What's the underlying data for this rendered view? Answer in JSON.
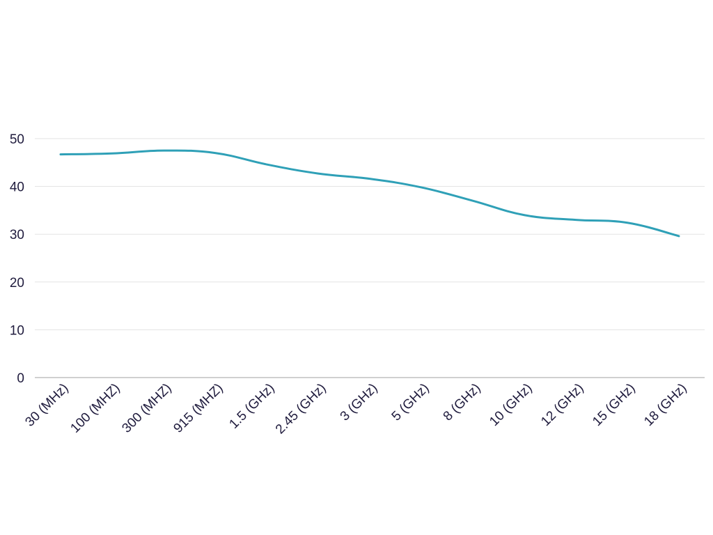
{
  "chart_data": {
    "type": "line",
    "categories": [
      "30 (MHz)",
      "100 (MHZ)",
      "300 (MHZ)",
      "915 (MHZ)",
      "1.5 (GHz)",
      "2.45 (GHz)",
      "3 (GHz)",
      "5 (GHz)",
      "8 (GHz)",
      "10 (GHz)",
      "12 (GHz)",
      "15 (GHz)",
      "18 (GHz)"
    ],
    "series": [
      {
        "values": [
          46.7,
          46.9,
          47.5,
          47.0,
          44.6,
          42.7,
          41.6,
          39.8,
          37.0,
          34.0,
          33.0,
          32.4,
          29.6
        ],
        "color": "#2fa0b7"
      }
    ],
    "ylim": [
      0,
      50
    ],
    "yticks": [
      0,
      10,
      20,
      30,
      40,
      50
    ],
    "grid": true,
    "legend": "none",
    "title": "",
    "xlabel": "",
    "ylabel": ""
  }
}
